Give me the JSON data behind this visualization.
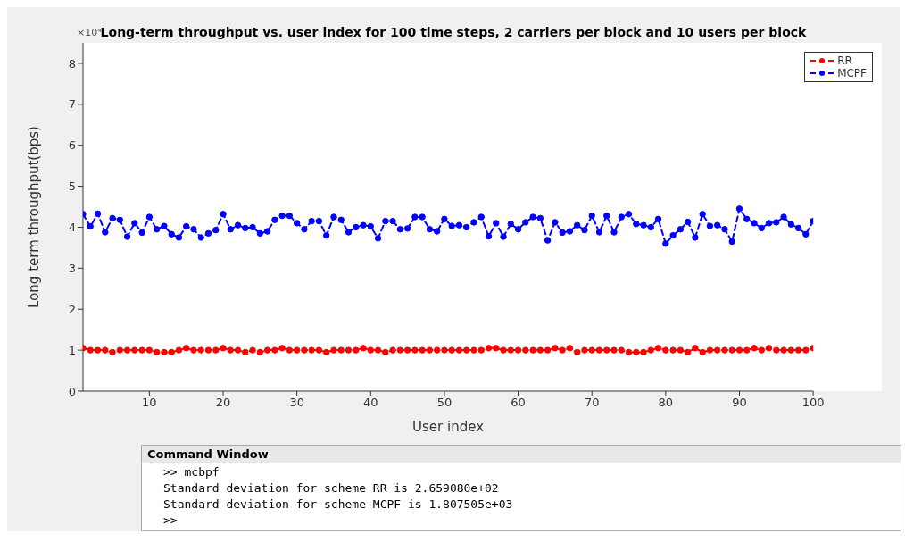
{
  "chart_data": {
    "type": "line",
    "title": "Long-term throughput vs. user index for 100 time steps, 2 carriers per block and 10 users per block",
    "xlabel": "User index",
    "ylabel": "Long term throughput(bps)",
    "x": [
      1,
      2,
      3,
      4,
      5,
      6,
      7,
      8,
      9,
      10,
      11,
      12,
      13,
      14,
      15,
      16,
      17,
      18,
      19,
      20,
      21,
      22,
      23,
      24,
      25,
      26,
      27,
      28,
      29,
      30,
      31,
      32,
      33,
      34,
      35,
      36,
      37,
      38,
      39,
      40,
      41,
      42,
      43,
      44,
      45,
      46,
      47,
      48,
      49,
      50,
      51,
      52,
      53,
      54,
      55,
      56,
      57,
      58,
      59,
      60,
      61,
      62,
      63,
      64,
      65,
      66,
      67,
      68,
      69,
      70,
      71,
      72,
      73,
      74,
      75,
      76,
      77,
      78,
      79,
      80,
      81,
      82,
      83,
      84,
      85,
      86,
      87,
      88,
      89,
      90,
      91,
      92,
      93,
      94,
      95,
      96,
      97,
      98,
      99,
      100
    ],
    "series": [
      {
        "name": "RR",
        "color": "#ff0000",
        "values": [
          1.05,
          1.0,
          1.0,
          1.0,
          0.95,
          1.0,
          1.0,
          1.0,
          1.0,
          1.0,
          0.95,
          0.95,
          0.95,
          1.0,
          1.05,
          1.0,
          1.0,
          1.0,
          1.0,
          1.05,
          1.0,
          1.0,
          0.95,
          1.0,
          0.95,
          1.0,
          1.0,
          1.05,
          1.0,
          1.0,
          1.0,
          1.0,
          1.0,
          0.95,
          1.0,
          1.0,
          1.0,
          1.0,
          1.05,
          1.0,
          1.0,
          0.95,
          1.0,
          1.0,
          1.0,
          1.0,
          1.0,
          1.0,
          1.0,
          1.0,
          1.0,
          1.0,
          1.0,
          1.0,
          1.0,
          1.05,
          1.05,
          1.0,
          1.0,
          1.0,
          1.0,
          1.0,
          1.0,
          1.0,
          1.05,
          1.0,
          1.05,
          0.95,
          1.0,
          1.0,
          1.0,
          1.0,
          1.0,
          1.0,
          0.95,
          0.95,
          0.95,
          1.0,
          1.05,
          1.0,
          1.0,
          1.0,
          0.95,
          1.05,
          0.95,
          1.0,
          1.0,
          1.0,
          1.0,
          1.0,
          1.0,
          1.05,
          1.0,
          1.05,
          1.0,
          1.0,
          1.0,
          1.0,
          1.0,
          1.05
        ]
      },
      {
        "name": "MCPF",
        "color": "#0000ff",
        "values": [
          4.32,
          4.02,
          4.33,
          3.88,
          4.22,
          4.18,
          3.77,
          4.1,
          3.87,
          4.25,
          3.95,
          4.03,
          3.83,
          3.75,
          4.02,
          3.95,
          3.75,
          3.85,
          3.93,
          4.32,
          3.95,
          4.05,
          3.98,
          4.0,
          3.85,
          3.9,
          4.18,
          4.28,
          4.28,
          4.1,
          3.95,
          4.15,
          4.15,
          3.8,
          4.25,
          4.18,
          3.88,
          4.0,
          4.05,
          4.02,
          3.73,
          4.15,
          4.15,
          3.95,
          3.97,
          4.25,
          4.25,
          3.95,
          3.9,
          4.2,
          4.03,
          4.05,
          4.0,
          4.12,
          4.25,
          3.78,
          4.1,
          3.77,
          4.08,
          3.95,
          4.12,
          4.25,
          4.22,
          3.68,
          4.12,
          3.87,
          3.9,
          4.05,
          3.93,
          4.28,
          3.88,
          4.28,
          3.88,
          4.25,
          4.32,
          4.08,
          4.05,
          4.0,
          4.2,
          3.6,
          3.8,
          3.95,
          4.13,
          3.75,
          4.32,
          4.03,
          4.05,
          3.95,
          3.65,
          4.45,
          4.2,
          4.1,
          3.98,
          4.1,
          4.12,
          4.25,
          4.07,
          3.98,
          3.83,
          4.15
        ]
      }
    ],
    "xlim": [
      1,
      100
    ],
    "xticks": [
      10,
      20,
      30,
      40,
      50,
      60,
      70,
      80,
      90,
      100
    ],
    "ylim": [
      0,
      8.5
    ],
    "yticks": [
      0,
      1,
      2,
      3,
      4,
      5,
      6,
      7,
      8
    ],
    "grid": false,
    "legend": "top right",
    "marker": "circle",
    "line_style": "dashed",
    "annotations": [
      "×10⁴",
      "Command Window",
      ">> mcbpf",
      "Standard deviation for scheme RR is 2.659080e+02",
      "Standard deviation for scheme MCPF is 1.807505e+03",
      ">>"
    ]
  }
}
